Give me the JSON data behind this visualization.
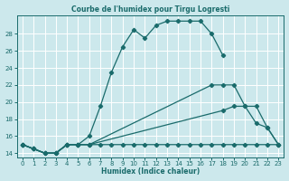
{
  "title": "Courbe de l'humidex pour Tirgu Logresti",
  "xlabel": "Humidex (Indice chaleur)",
  "bg_color": "#cce8ec",
  "line_color": "#1a6b6b",
  "grid_color": "#ffffff",
  "xlim": [
    -0.5,
    23.5
  ],
  "ylim": [
    13.5,
    30.2
  ],
  "yticks": [
    14,
    16,
    18,
    20,
    22,
    24,
    26,
    28
  ],
  "xticks": [
    0,
    1,
    2,
    3,
    4,
    5,
    6,
    7,
    8,
    9,
    10,
    11,
    12,
    13,
    14,
    15,
    16,
    17,
    18,
    19,
    20,
    21,
    22,
    23
  ],
  "line1_x": [
    0,
    1,
    2,
    3,
    4,
    5,
    6,
    7,
    8,
    9,
    10,
    11,
    12,
    13,
    14,
    15,
    16,
    17,
    18
  ],
  "line1_y": [
    15.0,
    14.5,
    14.0,
    14.0,
    15.0,
    15.0,
    16.0,
    19.5,
    23.5,
    26.5,
    28.5,
    27.5,
    29.0,
    29.5,
    29.5,
    29.5,
    29.5,
    28.0,
    25.5
  ],
  "line2_x": [
    0,
    1,
    2,
    3,
    4,
    5,
    6,
    7,
    8,
    9,
    10,
    11,
    12,
    13,
    14,
    15,
    16,
    17,
    18,
    19,
    20,
    21,
    22,
    23
  ],
  "line2_y": [
    15.0,
    14.5,
    14.0,
    14.0,
    15.0,
    15.0,
    15.0,
    15.0,
    15.0,
    15.0,
    15.0,
    15.0,
    15.0,
    15.0,
    15.0,
    15.0,
    15.0,
    15.0,
    15.0,
    15.0,
    15.0,
    15.0,
    15.0,
    15.0
  ],
  "line3_x": [
    0,
    1,
    2,
    3,
    4,
    5,
    6,
    18,
    19,
    20,
    21,
    22,
    23
  ],
  "line3_y": [
    15.0,
    14.5,
    14.0,
    14.0,
    15.0,
    15.0,
    15.0,
    19.0,
    19.5,
    19.5,
    17.5,
    17.0,
    15.0
  ],
  "line4_x": [
    0,
    1,
    2,
    3,
    4,
    5,
    6,
    17,
    18,
    19,
    20,
    21,
    22,
    23
  ],
  "line4_y": [
    15.0,
    14.5,
    14.0,
    14.0,
    15.0,
    15.0,
    15.0,
    22.0,
    22.0,
    22.0,
    19.5,
    19.5,
    17.0,
    15.0
  ]
}
